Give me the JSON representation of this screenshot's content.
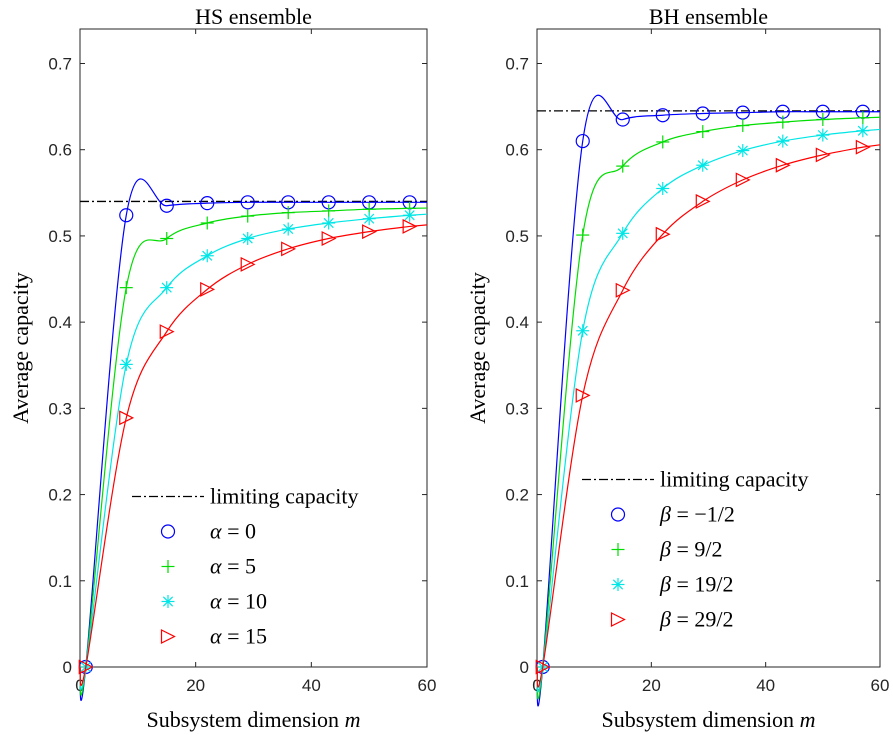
{
  "chart_data": [
    {
      "type": "line",
      "title": "HS ensemble",
      "xlabel": "Subsystem dimension",
      "xlabel_var": "m",
      "ylabel": "Average capacity",
      "xlim": [
        0,
        60
      ],
      "ylim": [
        0,
        0.74
      ],
      "xticks": [
        0,
        20,
        40,
        60
      ],
      "yticks": [
        0,
        0.1,
        0.2,
        0.3,
        0.4,
        0.5,
        0.6,
        0.7
      ],
      "grid": false,
      "legend_position": "bottom-right",
      "limit": {
        "name": "limiting capacity",
        "value": 0.54,
        "color": "#000000",
        "style": "dash-dot"
      },
      "series": [
        {
          "name": "α = 0",
          "param_symbol": "α",
          "param_value": "0",
          "color": "#0000ff",
          "marker": "circle",
          "x": [
            1,
            8,
            15,
            22,
            29,
            36,
            43,
            50,
            57
          ],
          "values": [
            0.0,
            0.524,
            0.535,
            0.538,
            0.539,
            0.539,
            0.539,
            0.539,
            0.539
          ]
        },
        {
          "name": "α = 5",
          "param_symbol": "α",
          "param_value": "5",
          "color": "#00dd00",
          "marker": "plus",
          "x": [
            1,
            8,
            15,
            22,
            29,
            36,
            43,
            50,
            57
          ],
          "values": [
            0.0,
            0.44,
            0.497,
            0.515,
            0.523,
            0.527,
            0.529,
            0.531,
            0.532
          ]
        },
        {
          "name": "α = 10",
          "param_symbol": "α",
          "param_value": "10",
          "color": "#00e6e6",
          "marker": "asterisk",
          "x": [
            1,
            8,
            15,
            22,
            29,
            36,
            43,
            50,
            57
          ],
          "values": [
            0.0,
            0.351,
            0.44,
            0.477,
            0.497,
            0.508,
            0.515,
            0.52,
            0.524
          ]
        },
        {
          "name": "α = 15",
          "param_symbol": "α",
          "param_value": "15",
          "color": "#ff0000",
          "marker": "triangle-right",
          "x": [
            1,
            8,
            15,
            22,
            29,
            36,
            43,
            50,
            57
          ],
          "values": [
            0.0,
            0.289,
            0.389,
            0.438,
            0.467,
            0.485,
            0.497,
            0.505,
            0.511
          ]
        }
      ]
    },
    {
      "type": "line",
      "title": "BH ensemble",
      "xlabel": "Subsystem dimension",
      "xlabel_var": "m",
      "ylabel": "Average capacity",
      "xlim": [
        0,
        60
      ],
      "ylim": [
        0,
        0.74
      ],
      "xticks": [
        0,
        20,
        40,
        60
      ],
      "yticks": [
        0,
        0.1,
        0.2,
        0.3,
        0.4,
        0.5,
        0.6,
        0.7
      ],
      "grid": false,
      "legend_position": "bottom-right",
      "limit": {
        "name": "limiting capacity",
        "value": 0.645,
        "color": "#000000",
        "style": "dash-dot"
      },
      "series": [
        {
          "name": "β = −1/2",
          "param_symbol": "β",
          "param_value": "−1/2",
          "color": "#0000ff",
          "marker": "circle",
          "x": [
            1,
            8,
            15,
            22,
            29,
            36,
            43,
            50,
            57
          ],
          "values": [
            0.0,
            0.61,
            0.635,
            0.64,
            0.642,
            0.643,
            0.644,
            0.644,
            0.644
          ]
        },
        {
          "name": "β = 9/2",
          "param_symbol": "β",
          "param_value": "9/2",
          "color": "#00dd00",
          "marker": "plus",
          "x": [
            1,
            8,
            15,
            22,
            29,
            36,
            43,
            50,
            57
          ],
          "values": [
            0.0,
            0.501,
            0.581,
            0.609,
            0.621,
            0.628,
            0.632,
            0.635,
            0.637
          ]
        },
        {
          "name": "β = 19/2",
          "param_symbol": "β",
          "param_value": "19/2",
          "color": "#00e6e6",
          "marker": "asterisk",
          "x": [
            1,
            8,
            15,
            22,
            29,
            36,
            43,
            50,
            57
          ],
          "values": [
            0.0,
            0.39,
            0.503,
            0.555,
            0.582,
            0.599,
            0.61,
            0.617,
            0.622
          ]
        },
        {
          "name": "β = 29/2",
          "param_symbol": "β",
          "param_value": "29/2",
          "color": "#ff0000",
          "marker": "triangle-right",
          "x": [
            1,
            8,
            15,
            22,
            29,
            36,
            43,
            50,
            57
          ],
          "values": [
            0.0,
            0.315,
            0.437,
            0.502,
            0.54,
            0.565,
            0.582,
            0.594,
            0.603
          ]
        }
      ]
    }
  ]
}
